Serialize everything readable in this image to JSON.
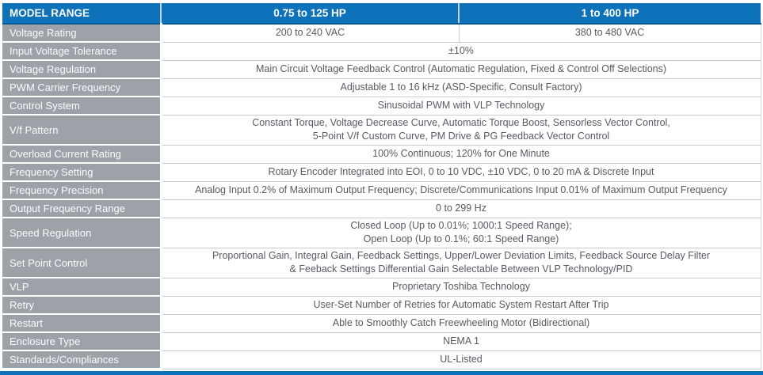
{
  "table": {
    "header": {
      "model_range": "MODEL RANGE",
      "col_230v": "0.75 to 125 HP",
      "col_460v": "1 to 400 HP"
    },
    "rows": [
      {
        "label": "Voltage Rating",
        "value_230v": "200 to 240 VAC",
        "value_460v": "380 to 480 VAC"
      },
      {
        "label": "Input Voltage Tolerance",
        "value": "±10%"
      },
      {
        "label": "Voltage Regulation",
        "value": "Main Circuit Voltage Feedback Control (Automatic Regulation, Fixed & Control Off Selections)"
      },
      {
        "label": "PWM Carrier Frequency",
        "value": "Adjustable 1 to 16 kHz (ASD-Specific, Consult Factory)"
      },
      {
        "label": "Control System",
        "value": "Sinusoidal PWM with VLP Technology"
      },
      {
        "label": "V/f Pattern",
        "value": "Constant Torque, Voltage Decrease Curve, Automatic Torque Boost, Sensorless Vector Control,\n5-Point V/f Custom Curve, PM Drive & PG Feedback Vector Control"
      },
      {
        "label": "Overload Current Rating",
        "value": "100% Continuous; 120% for One Minute"
      },
      {
        "label": "Frequency Setting",
        "value": "Rotary Encoder Integrated into EOI, 0 to 10 VDC, ±10 VDC, 0 to 20 mA & Discrete Input"
      },
      {
        "label": "Frequency Precision",
        "value": "Analog Input 0.2% of Maximum Output Frequency; Discrete/Communications Input 0.01% of Maximum Output Frequency"
      },
      {
        "label": "Output Frequency Range",
        "value": "0 to 299 Hz"
      },
      {
        "label": "Speed Regulation",
        "value": "Closed Loop (Up to 0.01%; 1000:1 Speed Range);\nOpen Loop (Up to 0.1%; 60:1 Speed Range)"
      },
      {
        "label": "Set Point Control",
        "value": "Proportional Gain, Integral Gain, Feedback Settings, Upper/Lower Deviation Limits, Feedback Source Delay Filter\n& Feeback Settings Differential Gain Selectable Between VLP Technology/PID"
      },
      {
        "label": "VLP",
        "value": "Proprietary Toshiba Technology"
      },
      {
        "label": "Retry",
        "value": "User-Set Number of Retries for Automatic System Restart After Trip"
      },
      {
        "label": "Restart",
        "value": "Able to Smoothly Catch Freewheeling Motor (Bidirectional)"
      },
      {
        "label": "Enclosure Type",
        "value": "NEMA 1"
      },
      {
        "label": "Standards/Compliances",
        "value": "UL-Listed"
      }
    ]
  },
  "colors": {
    "header_blue": "#0d72b9",
    "header_edge": "#0a5a92",
    "label_gray": "#9da2a9",
    "content_text": "#565b61",
    "row_border": "#c9cbcd",
    "bottom_bar_blue": "#0d72b9"
  }
}
